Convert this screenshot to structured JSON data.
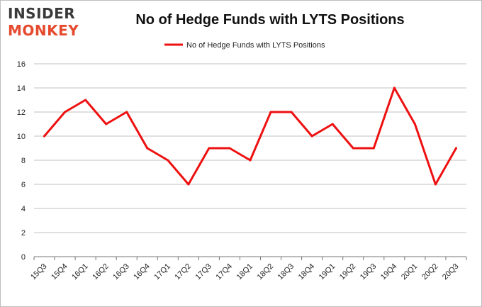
{
  "logo": {
    "line1": "INSIDER",
    "line2": "MONKEY"
  },
  "colors": {
    "series": "#ee1111",
    "grid": "#c0c0c0",
    "axis": "#777777",
    "brand_red": "#e64a2e"
  },
  "chart_data": {
    "type": "line",
    "title": "No of Hedge Funds with LYTS Positions",
    "xlabel": "",
    "ylabel": "",
    "categories": [
      "15Q3",
      "15Q4",
      "16Q1",
      "16Q2",
      "16Q3",
      "16Q4",
      "17Q1",
      "17Q2",
      "17Q3",
      "17Q4",
      "18Q1",
      "18Q2",
      "18Q3",
      "18Q4",
      "19Q1",
      "19Q2",
      "19Q3",
      "19Q4",
      "20Q1",
      "20Q2",
      "20Q3"
    ],
    "series": [
      {
        "name": "No of Hedge Funds with LYTS Positions",
        "values": [
          10,
          12,
          13,
          11,
          12,
          9,
          8,
          6,
          9,
          9,
          8,
          12,
          12,
          10,
          11,
          9,
          9,
          14,
          11,
          6,
          9
        ]
      }
    ],
    "ylim": [
      0,
      16
    ],
    "yticks": [
      0,
      2,
      4,
      6,
      8,
      10,
      12,
      14,
      16
    ],
    "grid": true,
    "legend": "top-center"
  }
}
